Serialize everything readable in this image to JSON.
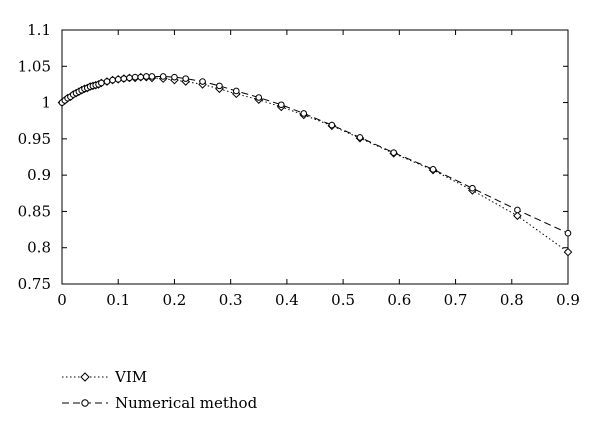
{
  "chart_data": {
    "type": "line",
    "title": "",
    "xlabel": "",
    "ylabel": "",
    "xlim": [
      0,
      0.9
    ],
    "ylim": [
      0.75,
      1.1
    ],
    "x_ticks": [
      "0",
      "0.1",
      "0.2",
      "0.3",
      "0.4",
      "0.5",
      "0.6",
      "0.7",
      "0.8",
      "0.9"
    ],
    "y_ticks": [
      "0.75",
      "0.8",
      "0.85",
      "0.9",
      "0.95",
      "1",
      "1.05",
      "1.1"
    ],
    "grid": false,
    "legend_position": "bottom-left",
    "series": [
      {
        "name": "VIM",
        "line_style": "dotted",
        "marker": "diamond",
        "x": [
          0.0,
          0.005,
          0.01,
          0.015,
          0.02,
          0.025,
          0.03,
          0.035,
          0.04,
          0.045,
          0.05,
          0.055,
          0.06,
          0.065,
          0.07,
          0.08,
          0.09,
          0.1,
          0.11,
          0.12,
          0.13,
          0.14,
          0.15,
          0.16,
          0.18,
          0.2,
          0.22,
          0.25,
          0.28,
          0.31,
          0.35,
          0.39,
          0.43,
          0.48,
          0.53,
          0.59,
          0.66,
          0.73,
          0.81,
          0.9
        ],
        "y": [
          1.0,
          1.003,
          1.006,
          1.008,
          1.011,
          1.013,
          1.015,
          1.017,
          1.019,
          1.02,
          1.022,
          1.023,
          1.024,
          1.025,
          1.027,
          1.029,
          1.031,
          1.032,
          1.033,
          1.034,
          1.034,
          1.035,
          1.035,
          1.034,
          1.033,
          1.031,
          1.029,
          1.025,
          1.019,
          1.012,
          1.004,
          0.994,
          0.983,
          0.968,
          0.951,
          0.93,
          0.907,
          0.879,
          0.844,
          0.794
        ]
      },
      {
        "name": "Numerical method",
        "line_style": "dashed",
        "marker": "circle",
        "x": [
          0.0,
          0.005,
          0.01,
          0.015,
          0.02,
          0.025,
          0.03,
          0.035,
          0.04,
          0.045,
          0.05,
          0.055,
          0.06,
          0.065,
          0.07,
          0.08,
          0.09,
          0.1,
          0.11,
          0.12,
          0.13,
          0.14,
          0.15,
          0.16,
          0.18,
          0.2,
          0.22,
          0.25,
          0.28,
          0.31,
          0.35,
          0.39,
          0.43,
          0.48,
          0.53,
          0.59,
          0.66,
          0.73,
          0.81,
          0.9
        ],
        "y": [
          1.0,
          1.003,
          1.006,
          1.008,
          1.011,
          1.013,
          1.015,
          1.017,
          1.019,
          1.02,
          1.022,
          1.023,
          1.024,
          1.025,
          1.027,
          1.029,
          1.031,
          1.032,
          1.033,
          1.034,
          1.035,
          1.035,
          1.036,
          1.036,
          1.036,
          1.035,
          1.033,
          1.029,
          1.023,
          1.016,
          1.007,
          0.997,
          0.985,
          0.969,
          0.952,
          0.931,
          0.908,
          0.882,
          0.852,
          0.82
        ]
      }
    ]
  }
}
